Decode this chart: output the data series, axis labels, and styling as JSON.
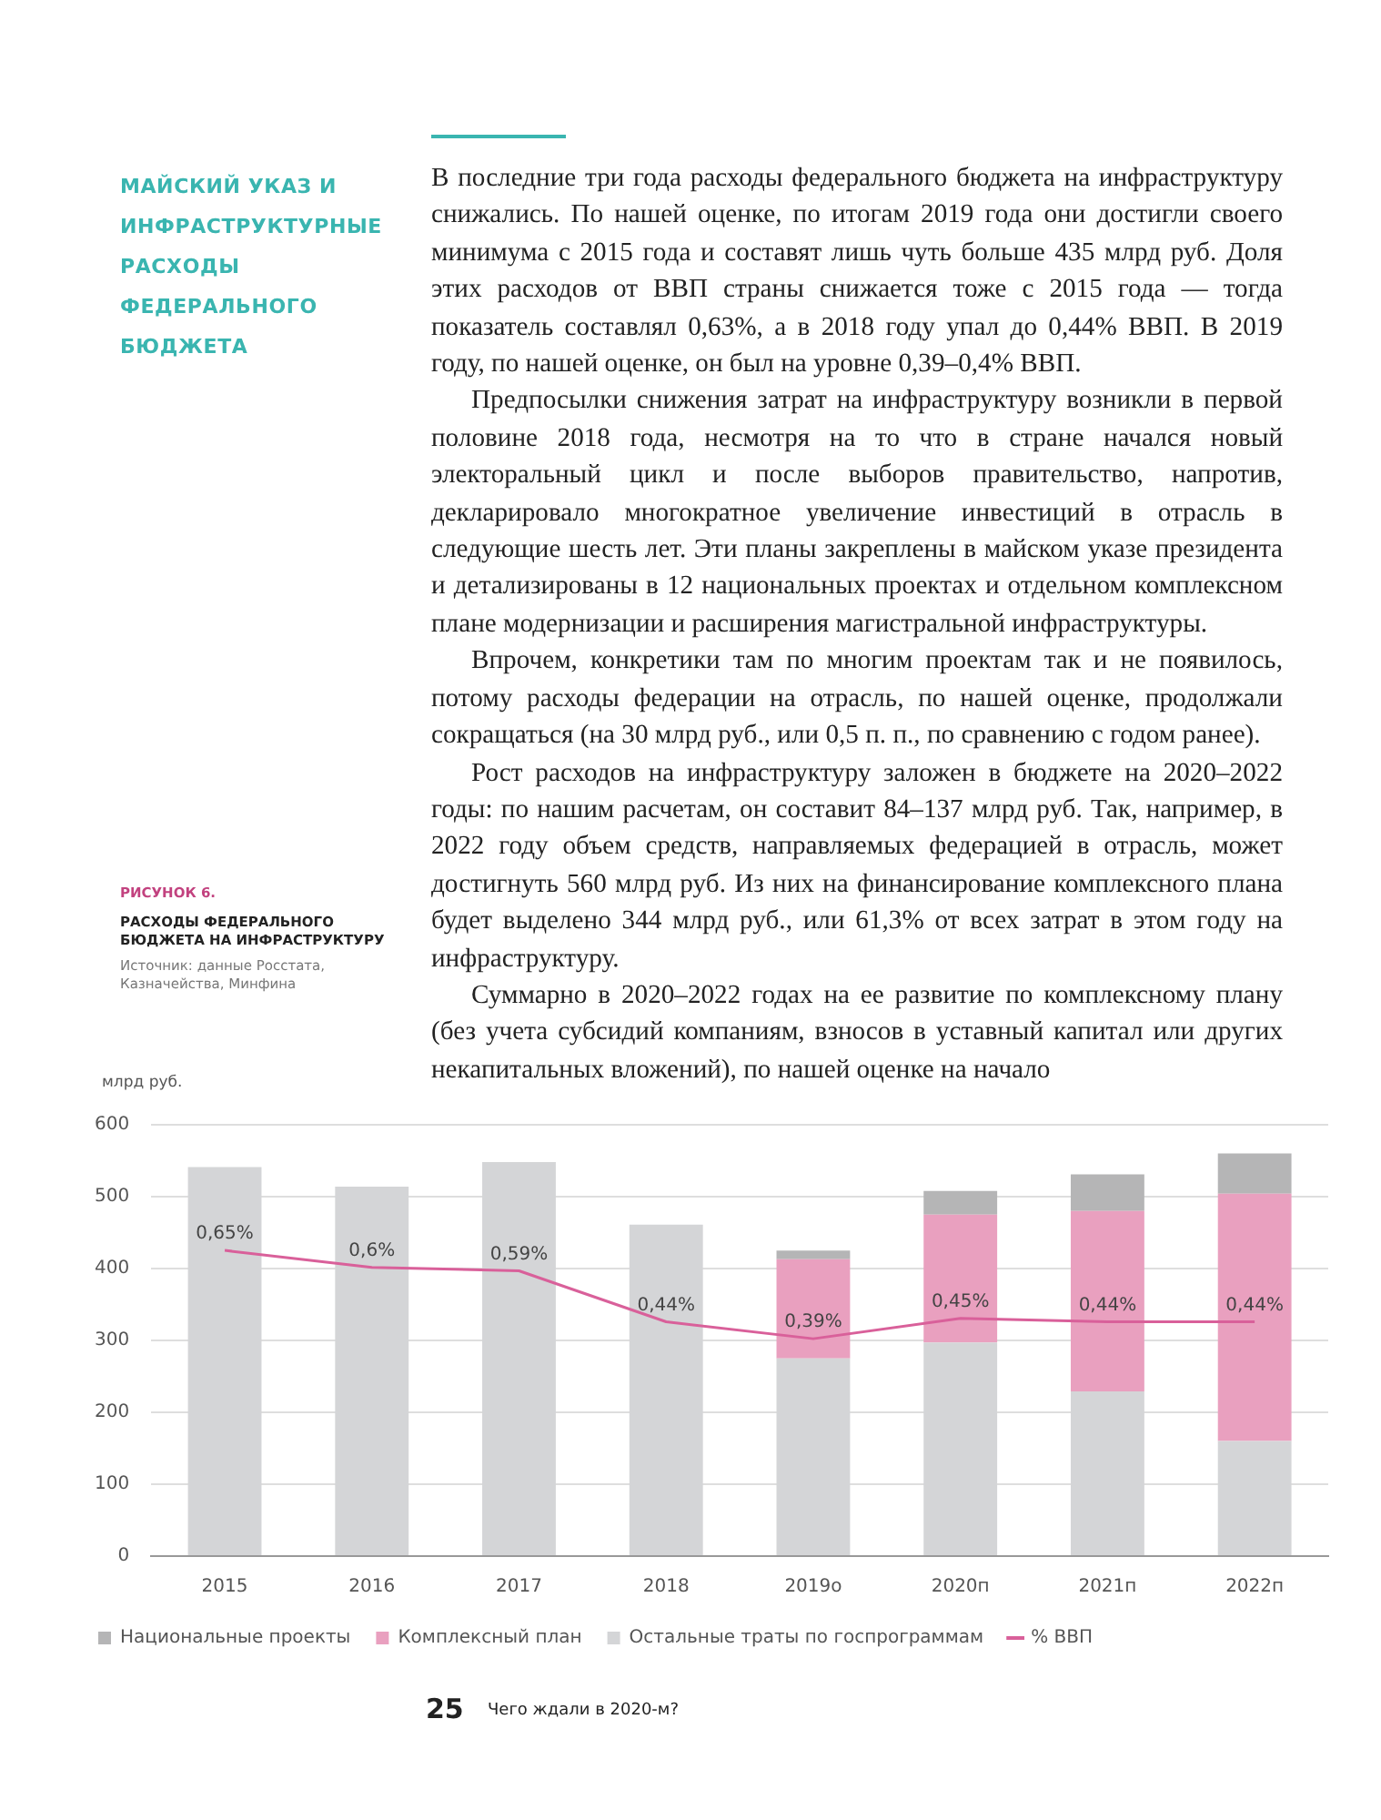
{
  "chart_data": {
    "type": "bar",
    "title": "РАСХОДЫ ФЕДЕРАЛЬНОГО БЮДЖЕТА НА ИНФРАСТРУКТУРУ",
    "subtitle": "РИСУНОК 6.",
    "ylabel": "млрд руб.",
    "annotations": [
      "МАЙСКИЙ УКАЗ И ИНФРАСТРУКТУРНЫЕ РАСХОДЫ ФЕДЕРАЛЬНОГО БЮДЖЕТА",
      "В последние три года расходы федерального бюджета на инфраструктуру снижались. По нашей оценке, по итогам 2019 года они достигли своего минимума с 2015 года и составят лишь чуть больше 435 млрд руб. Доля этих расходов от ВВП страны снижается тоже с 2015 года — тогда показатель составлял 0,63%, а в 2018 году упал до 0,44% ВВП. В 2019 году, по нашей оценке, он был на уровне 0,39–0,4% ВВП.",
      "Предпосылки снижения затрат на инфраструктуру возникли в первой половине 2018 года, несмотря на то что в стране начался новый электоральный цикл и после выборов правительство, напротив, декларировало многократное увеличение инвестиций в отрасль в следующие шесть лет. Эти планы закреплены в майском указе президента и детализированы в 12 национальных проектах и отдельном комплексном плане модернизации и расширения магистральной инфраструктуры.",
      "Впрочем, конкретики там по многим проектам так и не появилось, потому расходы федерации на отрасль, по нашей оценке, продолжали сокращаться (на 30 млрд руб., или 0,5 п. п., по сравнению с годом ранее).",
      "Рост расходов на инфраструктуру заложен в бюджете на 2020–2022 годы: по нашим расчетам, он составит 84–137 млрд руб. Так, например, в 2022 году объем средств, направляемых федерацией в отрасль, может достигнуть 560 млрд руб. Из них на финансирование комплексного плана будет выделено 344 млрд руб., или 61,3% от всех затрат в этом году на инфраструктуру.",
      "Суммарно в 2020–2022 годах на ее развитие по комплексному плану (без учета субсидий компаниям, взносов в уставный капитал или других некапитальных вложений), по нашей оценке на начало",
      "Источник: данные Росстата, Казначейства, Минфина",
      "25",
      "Чего ждали в 2020-м?"
    ],
    "categories": [
      "2015",
      "2016",
      "2017",
      "2018",
      "2019о",
      "2020п",
      "2021п",
      "2022п"
    ],
    "stacked": true,
    "ylim": [
      0,
      600
    ],
    "yticks": [
      0,
      100,
      200,
      300,
      400,
      500,
      600
    ],
    "y2lim": [
      -0.25,
      1.02
    ],
    "grid": "y",
    "legend": "bottom",
    "marker": "none",
    "series": [
      {
        "name": "Остальные траты по госпрограммам",
        "color": "#d4d5d7",
        "values": [
          541,
          514,
          548,
          461,
          275,
          297,
          229,
          160
        ]
      },
      {
        "name": "Комплексный план",
        "color": "#e9a0bf",
        "values": [
          null,
          null,
          null,
          null,
          138,
          178,
          251,
          344
        ]
      },
      {
        "name": "Национальные проекты",
        "color": "#b5b5b6",
        "values": [
          null,
          null,
          null,
          null,
          12,
          33,
          51,
          56
        ]
      },
      {
        "name": "% ВВП",
        "type": "line",
        "axis": "y2",
        "color": "#d9609a",
        "values": [
          0.65,
          0.6,
          0.59,
          0.44,
          0.39,
          0.45,
          0.44,
          0.44
        ],
        "value_labels": [
          "0,65%",
          "0,6%",
          "0,59%",
          "0,44%",
          "0,39%",
          "0,45%",
          "0,44%",
          "0,44%"
        ]
      }
    ]
  }
}
